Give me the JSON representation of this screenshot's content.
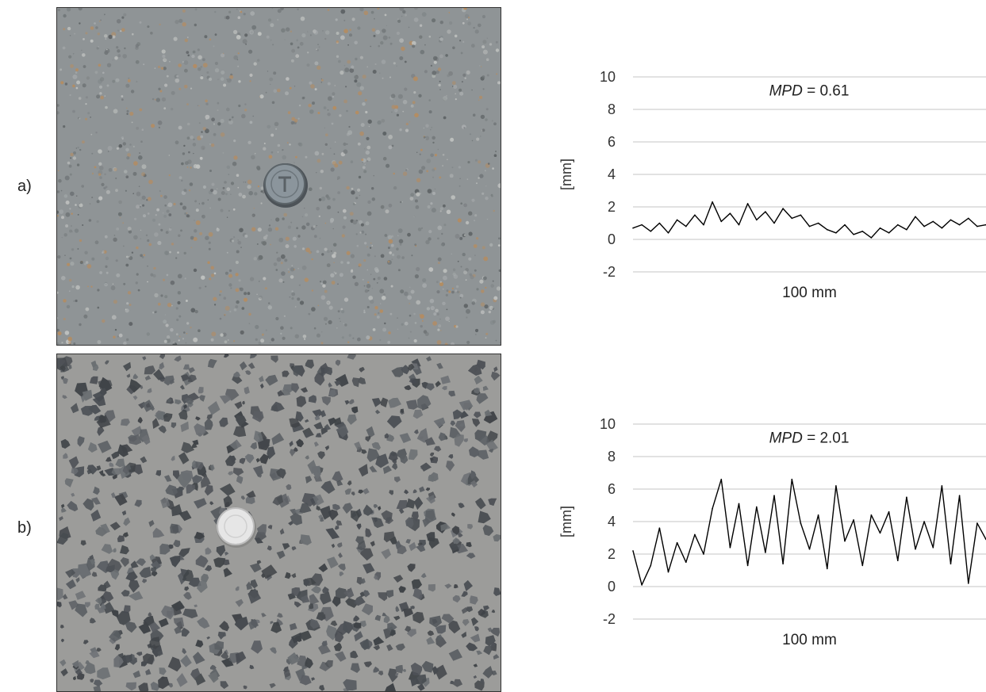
{
  "panels": [
    {
      "label": "a)",
      "photo": {
        "subject": "fine textured concrete surface with coin",
        "colors": {
          "base": "#8f9496",
          "speck": "#b58c60",
          "coin": "#8b959c"
        }
      }
    },
    {
      "label": "b)",
      "photo": {
        "subject": "exposed aggregate concrete surface with coin",
        "colors": {
          "base": "#9c9c9a",
          "stone": "#4e5257",
          "coin": "#e6e6e6"
        }
      }
    }
  ],
  "chart_data": [
    {
      "type": "line",
      "annotation_prefix": "MPD",
      "annotation_value": " = 0.61",
      "xlabel": "100 mm",
      "ylabel": "[mm]",
      "ylim": [
        -2,
        10
      ],
      "yticks": [
        "-2",
        "0",
        "2",
        "4",
        "6",
        "8",
        "10"
      ],
      "grid": true,
      "line_color": "#000000",
      "x": [
        0,
        2.5,
        5,
        7.5,
        10,
        12.5,
        15,
        17.5,
        20,
        22.5,
        25,
        27.5,
        30,
        32.5,
        35,
        37.5,
        40,
        42.5,
        45,
        47.5,
        50,
        52.5,
        55,
        57.5,
        60,
        62.5,
        65,
        67.5,
        70,
        72.5,
        75,
        77.5,
        80,
        82.5,
        85,
        87.5,
        90,
        92.5,
        95,
        97.5,
        100
      ],
      "y": [
        0.7,
        0.9,
        0.5,
        1.0,
        0.4,
        1.2,
        0.8,
        1.5,
        0.9,
        2.3,
        1.1,
        1.6,
        0.9,
        2.2,
        1.2,
        1.7,
        1.0,
        1.9,
        1.3,
        1.5,
        0.8,
        1.0,
        0.6,
        0.4,
        0.9,
        0.3,
        0.5,
        0.1,
        0.7,
        0.4,
        0.9,
        0.6,
        1.4,
        0.8,
        1.1,
        0.7,
        1.2,
        0.9,
        1.3,
        0.8,
        0.9
      ]
    },
    {
      "type": "line",
      "annotation_prefix": "MPD",
      "annotation_value": " = 2.01",
      "xlabel": "100 mm",
      "ylabel": "[mm]",
      "ylim": [
        -2,
        10
      ],
      "yticks": [
        "-2",
        "0",
        "2",
        "4",
        "6",
        "8",
        "10"
      ],
      "grid": true,
      "line_color": "#000000",
      "x": [
        0,
        2.5,
        5,
        7.5,
        10,
        12.5,
        15,
        17.5,
        20,
        22.5,
        25,
        27.5,
        30,
        32.5,
        35,
        37.5,
        40,
        42.5,
        45,
        47.5,
        50,
        52.5,
        55,
        57.5,
        60,
        62.5,
        65,
        67.5,
        70,
        72.5,
        75,
        77.5,
        80,
        82.5,
        85,
        87.5,
        90,
        92.5,
        95,
        97.5,
        100
      ],
      "y": [
        2.2,
        0.1,
        1.3,
        3.6,
        0.9,
        2.7,
        1.5,
        3.2,
        2.0,
        4.8,
        6.6,
        2.4,
        5.1,
        1.3,
        4.9,
        2.1,
        5.6,
        1.4,
        6.6,
        3.9,
        2.3,
        4.4,
        1.1,
        6.2,
        2.8,
        4.1,
        1.3,
        4.4,
        3.3,
        4.6,
        1.6,
        5.5,
        2.3,
        4.0,
        2.4,
        6.2,
        1.4,
        5.6,
        0.2,
        3.9,
        2.9
      ]
    }
  ]
}
